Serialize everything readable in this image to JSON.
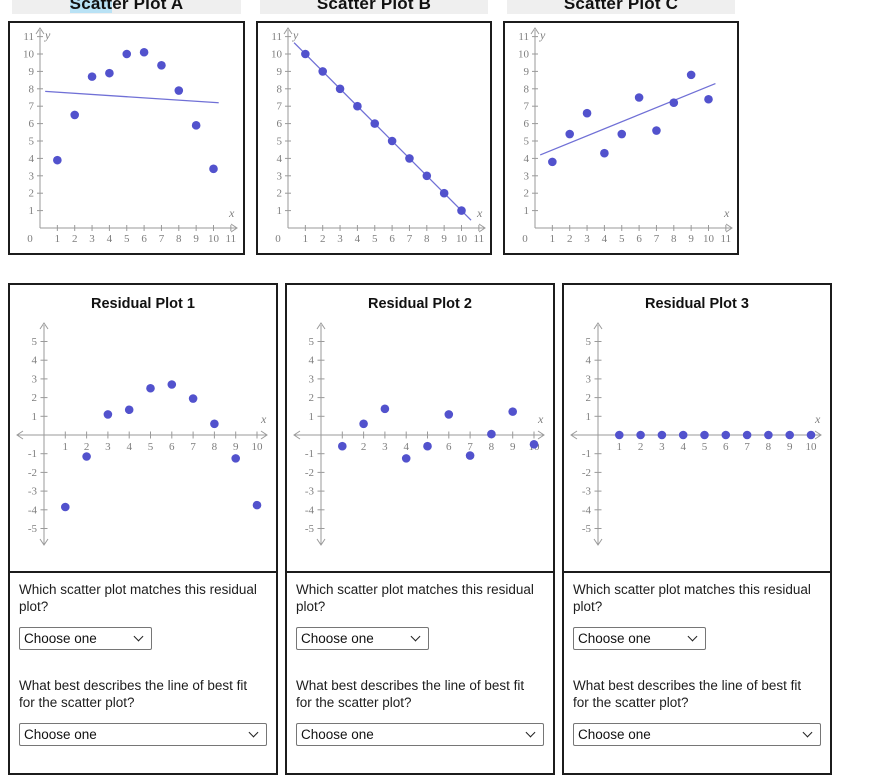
{
  "style": {
    "point_color": "#5252cd",
    "fit_line_color": "#7070d6",
    "axis_color": "#9a9a9a",
    "axis_label_color": "#7e7e7e",
    "title_bar_bg": "#efefef",
    "selection_highlight_color": "#b9e2f5",
    "card_border_color": "#1c1c1c"
  },
  "scatter_axis": {
    "x_label": "x",
    "y_label": "y",
    "origin_label": "0",
    "x_ticks": [
      1,
      2,
      3,
      4,
      5,
      6,
      7,
      8,
      9,
      10,
      11
    ],
    "y_ticks": [
      1,
      2,
      3,
      4,
      5,
      6,
      7,
      8,
      9,
      10,
      11
    ]
  },
  "residual_axis": {
    "x_label": "x",
    "x_ticks": [
      1,
      2,
      3,
      4,
      5,
      6,
      7,
      8,
      9,
      10
    ],
    "y_ticks_pos": [
      1,
      2,
      3,
      4,
      5
    ],
    "y_ticks_neg": [
      -1,
      -2,
      -3,
      -4,
      -5
    ]
  },
  "chart_data": [
    {
      "type": "scatter",
      "title": "Scatter Plot A",
      "title_highlight": "Scatt",
      "title_rest": "er Plot A",
      "x": [
        1,
        2,
        3,
        4,
        5,
        6,
        7,
        8,
        9,
        10
      ],
      "y": [
        3.9,
        6.5,
        8.7,
        8.9,
        10,
        10.1,
        9.35,
        7.9,
        5.9,
        3.4
      ],
      "fit_line": {
        "x1": 0.3,
        "y1": 7.85,
        "x2": 10.3,
        "y2": 7.2
      },
      "xlabel": "x",
      "ylabel": "y",
      "xlim": [
        0,
        11
      ],
      "ylim": [
        0,
        11
      ],
      "grid": false
    },
    {
      "type": "scatter",
      "title": "Scatter Plot B",
      "x": [
        1,
        2,
        3,
        4,
        5,
        6,
        7,
        8,
        9,
        10
      ],
      "y": [
        10,
        9,
        8,
        7,
        6,
        5,
        4,
        3,
        2,
        1
      ],
      "fit_line": {
        "x1": 0.35,
        "y1": 10.65,
        "x2": 10.55,
        "y2": 0.45
      },
      "xlabel": "x",
      "ylabel": "y",
      "xlim": [
        0,
        11
      ],
      "ylim": [
        0,
        11
      ],
      "grid": false
    },
    {
      "type": "scatter",
      "title": "Scatter Plot C",
      "x": [
        1,
        2,
        3,
        4,
        5,
        6,
        7,
        8,
        9,
        10
      ],
      "y": [
        3.8,
        5.4,
        6.6,
        4.3,
        5.4,
        7.5,
        5.6,
        7.2,
        8.8,
        7.4
      ],
      "fit_line": {
        "x1": 0.3,
        "y1": 4.2,
        "x2": 10.4,
        "y2": 8.3
      },
      "xlabel": "x",
      "ylabel": "y",
      "xlim": [
        0,
        11
      ],
      "ylim": [
        0,
        11
      ],
      "grid": false
    },
    {
      "type": "residual_scatter",
      "title": "Residual Plot 1",
      "x": [
        1,
        2,
        3,
        4,
        5,
        6,
        7,
        8,
        9,
        10
      ],
      "y": [
        -3.85,
        -1.15,
        1.1,
        1.35,
        2.5,
        2.7,
        1.95,
        0.6,
        -1.25,
        -3.75
      ],
      "xlabel": "x",
      "xlim": [
        0,
        10
      ],
      "ylim": [
        -5,
        5
      ],
      "grid": false
    },
    {
      "type": "residual_scatter",
      "title": "Residual Plot 2",
      "x": [
        1,
        2,
        3,
        4,
        5,
        6,
        7,
        8,
        9,
        10
      ],
      "y": [
        -0.6,
        0.6,
        1.4,
        -1.25,
        -0.6,
        1.1,
        -1.1,
        0.05,
        1.25,
        -0.5
      ],
      "xlabel": "x",
      "xlim": [
        0,
        10
      ],
      "ylim": [
        -5,
        5
      ],
      "grid": false
    },
    {
      "type": "residual_scatter",
      "title": "Residual Plot 3",
      "x": [
        1,
        2,
        3,
        4,
        5,
        6,
        7,
        8,
        9,
        10
      ],
      "y": [
        0,
        0,
        0,
        0,
        0,
        0,
        0,
        0,
        0,
        0
      ],
      "xlabel": "x",
      "xlim": [
        0,
        10
      ],
      "ylim": [
        -5,
        5
      ],
      "grid": false
    }
  ],
  "residual_cards": [
    {
      "match_question": "Which scatter plot matches this residual plot?",
      "match_value": "Choose one",
      "fit_question": "What best describes the line of best fit for the scatter plot?",
      "fit_value": "Choose one"
    },
    {
      "match_question": "Which scatter plot matches this residual plot?",
      "match_value": "Choose one",
      "fit_question": "What best describes the line of best fit for the scatter plot?",
      "fit_value": "Choose one"
    },
    {
      "match_question": "Which scatter plot matches this residual plot?",
      "match_value": "Choose one",
      "fit_question": "What best describes the line of best fit for the scatter plot?",
      "fit_value": "Choose one"
    }
  ]
}
